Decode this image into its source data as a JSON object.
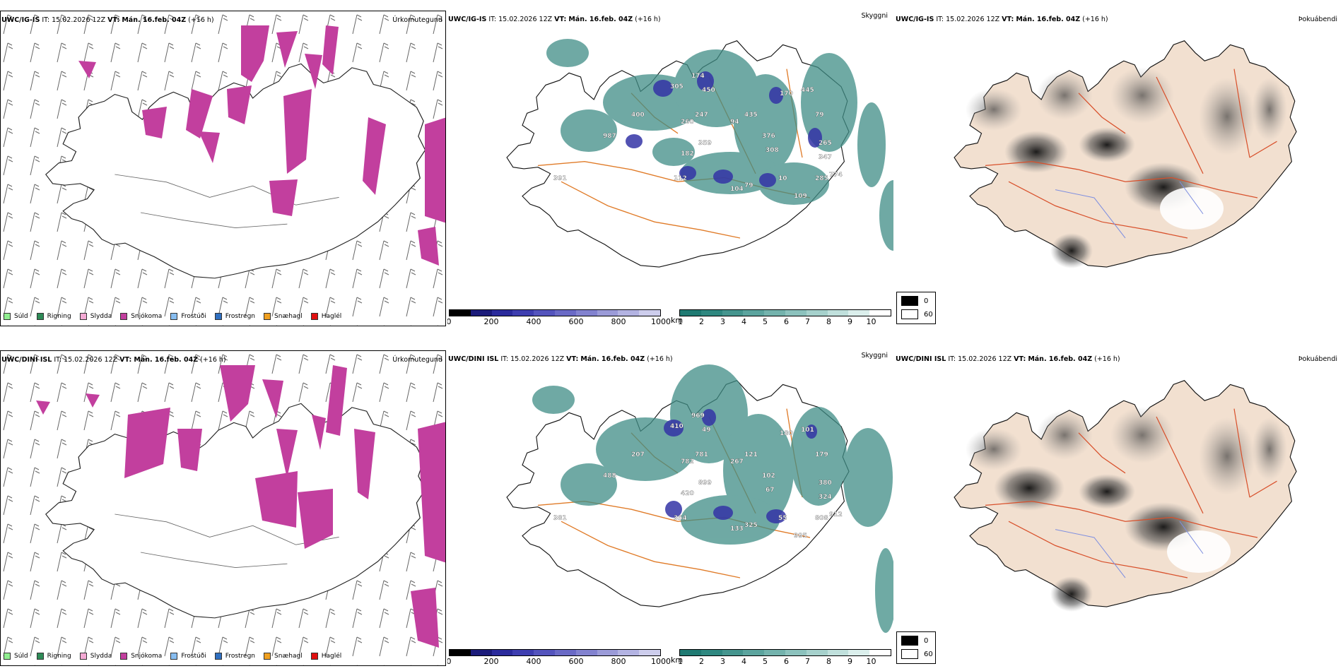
{
  "rows": [
    {
      "model": "UWC/IG-IS",
      "it_label": "IT:",
      "it_value": "15.02.2026 12Z",
      "vt_label": "VT:",
      "vt_value": "Mán. 16.feb. 04Z",
      "lead": "(+16 h)",
      "cloud_labels": [
        "391",
        "987",
        "400",
        "305",
        "174",
        "450",
        "247",
        "260",
        "359",
        "182",
        "112",
        "104",
        "79",
        "94",
        "435",
        "376",
        "308",
        "170",
        "445",
        "79",
        "265",
        "347",
        "774",
        "285",
        "109",
        "10"
      ]
    },
    {
      "model": "UWC/DINI ISL",
      "it_label": "IT:",
      "it_value": "15.02.2026 12Z",
      "vt_label": "VT:",
      "vt_value": "Mán. 16.feb. 04Z",
      "lead": "(+16 h)",
      "cloud_labels": [
        "381",
        "488",
        "207",
        "410",
        "969",
        "49",
        "781",
        "782",
        "899",
        "420",
        "354",
        "133",
        "325",
        "267",
        "121",
        "102",
        "67",
        "180",
        "101",
        "179",
        "380",
        "324",
        "912",
        "808",
        "995",
        "55"
      ]
    }
  ],
  "panel_titles": {
    "precip_type": "Úrkomutegund",
    "cloud": "Skyggni",
    "fog": "Þokuábendi"
  },
  "precip_legend": [
    {
      "label": "Súld",
      "color": "#90ee90"
    },
    {
      "label": "Rigning",
      "color": "#2e8b57"
    },
    {
      "label": "Slydda",
      "color": "#f4a9d4"
    },
    {
      "label": "Snjókoma",
      "color": "#c23f9e"
    },
    {
      "label": "Frostúði",
      "color": "#87bdf0"
    },
    {
      "label": "Frostregn",
      "color": "#2f6fc0"
    },
    {
      "label": "Snæhagl",
      "color": "#f0a020"
    },
    {
      "label": "Haglél",
      "color": "#e01010"
    }
  ],
  "cloudbase_bar": {
    "unit": "m",
    "ticks": [
      "0",
      "200",
      "400",
      "600",
      "800",
      "1000"
    ],
    "colors": [
      "#000000",
      "#1b1b7a",
      "#2b2b9c",
      "#3e3eb0",
      "#5454bd",
      "#6a6ac6",
      "#8282cf",
      "#9b9bd8",
      "#b3b3e2",
      "#cdcdec"
    ]
  },
  "visibility_bar": {
    "unit": "km",
    "ticks": [
      "1",
      "2",
      "3",
      "4",
      "5",
      "6",
      "7",
      "8",
      "9",
      "10"
    ],
    "colors": [
      "#1f7a72",
      "#2f8880",
      "#45958e",
      "#5ca49e",
      "#74b3ad",
      "#8cc2bd",
      "#a6d1cc",
      "#c0e0dc",
      "#dbefec",
      "#ffffff"
    ]
  },
  "fog_legend": [
    {
      "label": "0",
      "color": "#000000"
    },
    {
      "label": "60",
      "color": "#ffffff"
    }
  ]
}
